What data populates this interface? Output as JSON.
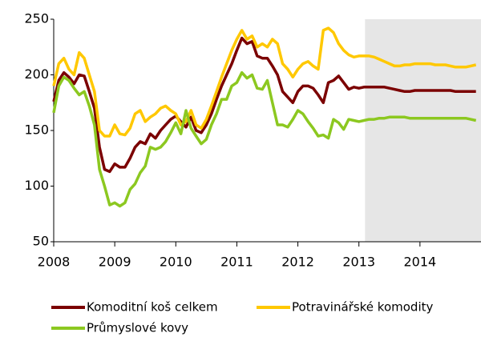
{
  "chart_data": {
    "type": "line",
    "x": [
      2008,
      2008.083,
      2008.167,
      2008.25,
      2008.333,
      2008.417,
      2008.5,
      2008.583,
      2008.667,
      2008.75,
      2008.833,
      2008.917,
      2009,
      2009.083,
      2009.167,
      2009.25,
      2009.333,
      2009.417,
      2009.5,
      2009.583,
      2009.667,
      2009.75,
      2009.833,
      2009.917,
      2010,
      2010.083,
      2010.167,
      2010.25,
      2010.333,
      2010.417,
      2010.5,
      2010.583,
      2010.667,
      2010.75,
      2010.833,
      2010.917,
      2011,
      2011.083,
      2011.167,
      2011.25,
      2011.333,
      2011.417,
      2011.5,
      2011.583,
      2011.667,
      2011.75,
      2011.833,
      2011.917,
      2012,
      2012.083,
      2012.167,
      2012.25,
      2012.333,
      2012.417,
      2012.5,
      2012.583,
      2012.667,
      2012.75,
      2012.833,
      2012.917,
      2013,
      2013.083,
      2013.167,
      2013.25,
      2013.333,
      2013.417,
      2013.5,
      2013.583,
      2013.667,
      2013.75,
      2013.833,
      2013.917,
      2014,
      2014.083,
      2014.167,
      2014.25,
      2014.333,
      2014.417,
      2014.5,
      2014.583,
      2014.667,
      2014.75,
      2014.833,
      2014.917
    ],
    "series": [
      {
        "name": "Komoditní koš celkem",
        "color": "#7b0000",
        "values": [
          176,
          195,
          202,
          198,
          192,
          200,
          199,
          185,
          170,
          135,
          115,
          113,
          120,
          117,
          117,
          125,
          135,
          140,
          138,
          147,
          143,
          150,
          155,
          160,
          163,
          158,
          153,
          162,
          150,
          148,
          155,
          165,
          178,
          190,
          200,
          210,
          222,
          233,
          228,
          230,
          217,
          215,
          215,
          208,
          200,
          185,
          180,
          175,
          185,
          190,
          190,
          188,
          182,
          175,
          193,
          195,
          199,
          193,
          187,
          189,
          188,
          189,
          189,
          189,
          189,
          189,
          188,
          187,
          186,
          185,
          185,
          186,
          186,
          186,
          186,
          186,
          186,
          186,
          186,
          185,
          185,
          185,
          185,
          185
        ]
      },
      {
        "name": "Potravinářské komodity",
        "color": "#ffc800",
        "values": [
          190,
          210,
          215,
          205,
          200,
          220,
          215,
          200,
          185,
          150,
          145,
          145,
          155,
          147,
          146,
          152,
          165,
          168,
          158,
          162,
          165,
          170,
          172,
          168,
          165,
          155,
          158,
          168,
          155,
          152,
          160,
          172,
          185,
          198,
          210,
          222,
          232,
          240,
          232,
          235,
          225,
          228,
          225,
          232,
          228,
          210,
          205,
          198,
          205,
          210,
          212,
          208,
          205,
          240,
          242,
          238,
          228,
          222,
          218,
          216,
          217,
          217,
          217,
          216,
          214,
          212,
          210,
          208,
          208,
          209,
          209,
          210,
          210,
          210,
          210,
          209,
          209,
          209,
          208,
          207,
          207,
          207,
          208,
          209
        ]
      },
      {
        "name": "Průmyslové kovy",
        "color": "#8cc820",
        "values": [
          166,
          190,
          198,
          195,
          188,
          182,
          185,
          172,
          155,
          115,
          100,
          83,
          85,
          82,
          85,
          97,
          102,
          112,
          118,
          135,
          133,
          135,
          140,
          148,
          157,
          147,
          168,
          152,
          145,
          138,
          142,
          155,
          165,
          178,
          178,
          190,
          193,
          202,
          197,
          200,
          188,
          187,
          195,
          175,
          155,
          155,
          153,
          160,
          168,
          165,
          158,
          152,
          145,
          146,
          143,
          160,
          157,
          151,
          160,
          159,
          158,
          159,
          160,
          160,
          161,
          161,
          162,
          162,
          162,
          162,
          161,
          161,
          161,
          161,
          161,
          161,
          161,
          161,
          161,
          161,
          161,
          161,
          160,
          159
        ]
      }
    ],
    "shaded_region": {
      "from": 2013.1,
      "to": 2015,
      "color": "#e6e6e6"
    },
    "xlim": [
      2008,
      2015
    ],
    "xticks": [
      2008,
      2009,
      2010,
      2011,
      2012,
      2013,
      2014
    ],
    "ylim": [
      50,
      250
    ],
    "yticks": [
      50,
      100,
      150,
      200,
      250
    ],
    "grid": false
  }
}
